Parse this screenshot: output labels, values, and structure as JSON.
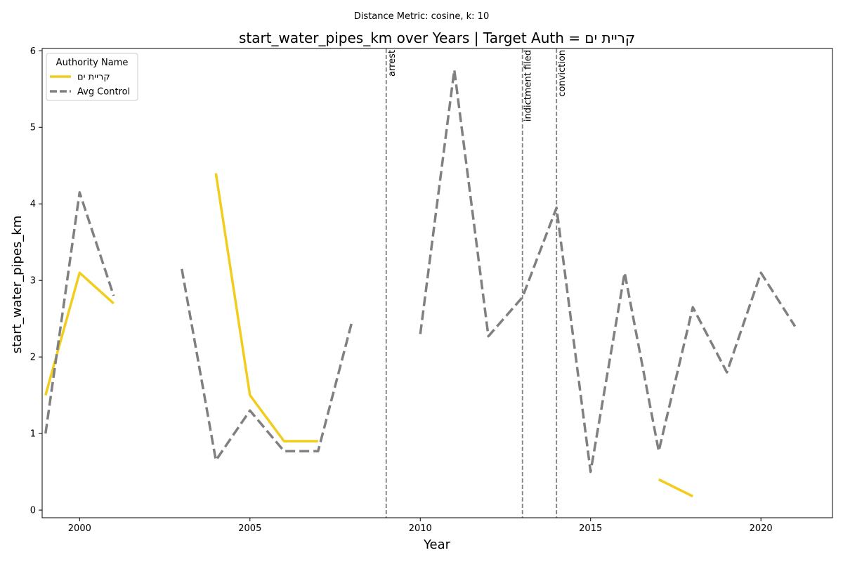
{
  "chart_data": {
    "type": "line",
    "suptitle": "Distance Metric: cosine, k: 10",
    "title": "start_water_pipes_km over Years | Target Auth = קריית ים",
    "xlabel": "Year",
    "ylabel": "start_water_pipes_km",
    "xlim": [
      1998.9,
      2022.1
    ],
    "ylim": [
      -0.1,
      6.03
    ],
    "xticks": [
      2000,
      2005,
      2010,
      2015,
      2020
    ],
    "yticks": [
      0,
      1,
      2,
      3,
      4,
      5,
      6
    ],
    "grid": false,
    "legend": {
      "title": "Authority Name",
      "placement": "top-left"
    },
    "series": [
      {
        "name": "קריית ים",
        "color": "#f2cd1d",
        "style": "solid",
        "points": [
          [
            1999,
            1.5
          ],
          [
            2000,
            3.1
          ],
          [
            2001,
            2.7
          ],
          [
            2002,
            null
          ],
          [
            2003,
            null
          ],
          [
            2004,
            4.4
          ],
          [
            2005,
            1.5
          ],
          [
            2006,
            0.9
          ],
          [
            2007,
            0.9
          ],
          [
            2008,
            null
          ],
          [
            2009,
            null
          ],
          [
            2010,
            null
          ],
          [
            2011,
            null
          ],
          [
            2012,
            null
          ],
          [
            2013,
            null
          ],
          [
            2014,
            null
          ],
          [
            2015,
            null
          ],
          [
            2016,
            null
          ],
          [
            2017,
            0.4
          ],
          [
            2018,
            0.18
          ]
        ]
      },
      {
        "name": "Avg Control",
        "color": "#808080",
        "style": "dashed",
        "points": [
          [
            1999,
            1.0
          ],
          [
            2000,
            4.15
          ],
          [
            2001,
            2.8
          ],
          [
            2002,
            null
          ],
          [
            2003,
            3.15
          ],
          [
            2004,
            0.65
          ],
          [
            2005,
            1.3
          ],
          [
            2006,
            0.77
          ],
          [
            2007,
            0.77
          ],
          [
            2008,
            2.47
          ],
          [
            2009,
            null
          ],
          [
            2010,
            2.3
          ],
          [
            2011,
            5.75
          ],
          [
            2012,
            2.27
          ],
          [
            2013,
            2.78
          ],
          [
            2014,
            3.95
          ],
          [
            2015,
            0.5
          ],
          [
            2016,
            3.1
          ],
          [
            2017,
            0.77
          ],
          [
            2018,
            2.65
          ],
          [
            2019,
            1.8
          ],
          [
            2020,
            3.1
          ],
          [
            2021,
            2.4
          ]
        ]
      }
    ],
    "events": [
      {
        "year": 2009,
        "label": "arrest"
      },
      {
        "year": 2013,
        "label": "indictment filed"
      },
      {
        "year": 2014,
        "label": "conviction"
      }
    ]
  }
}
